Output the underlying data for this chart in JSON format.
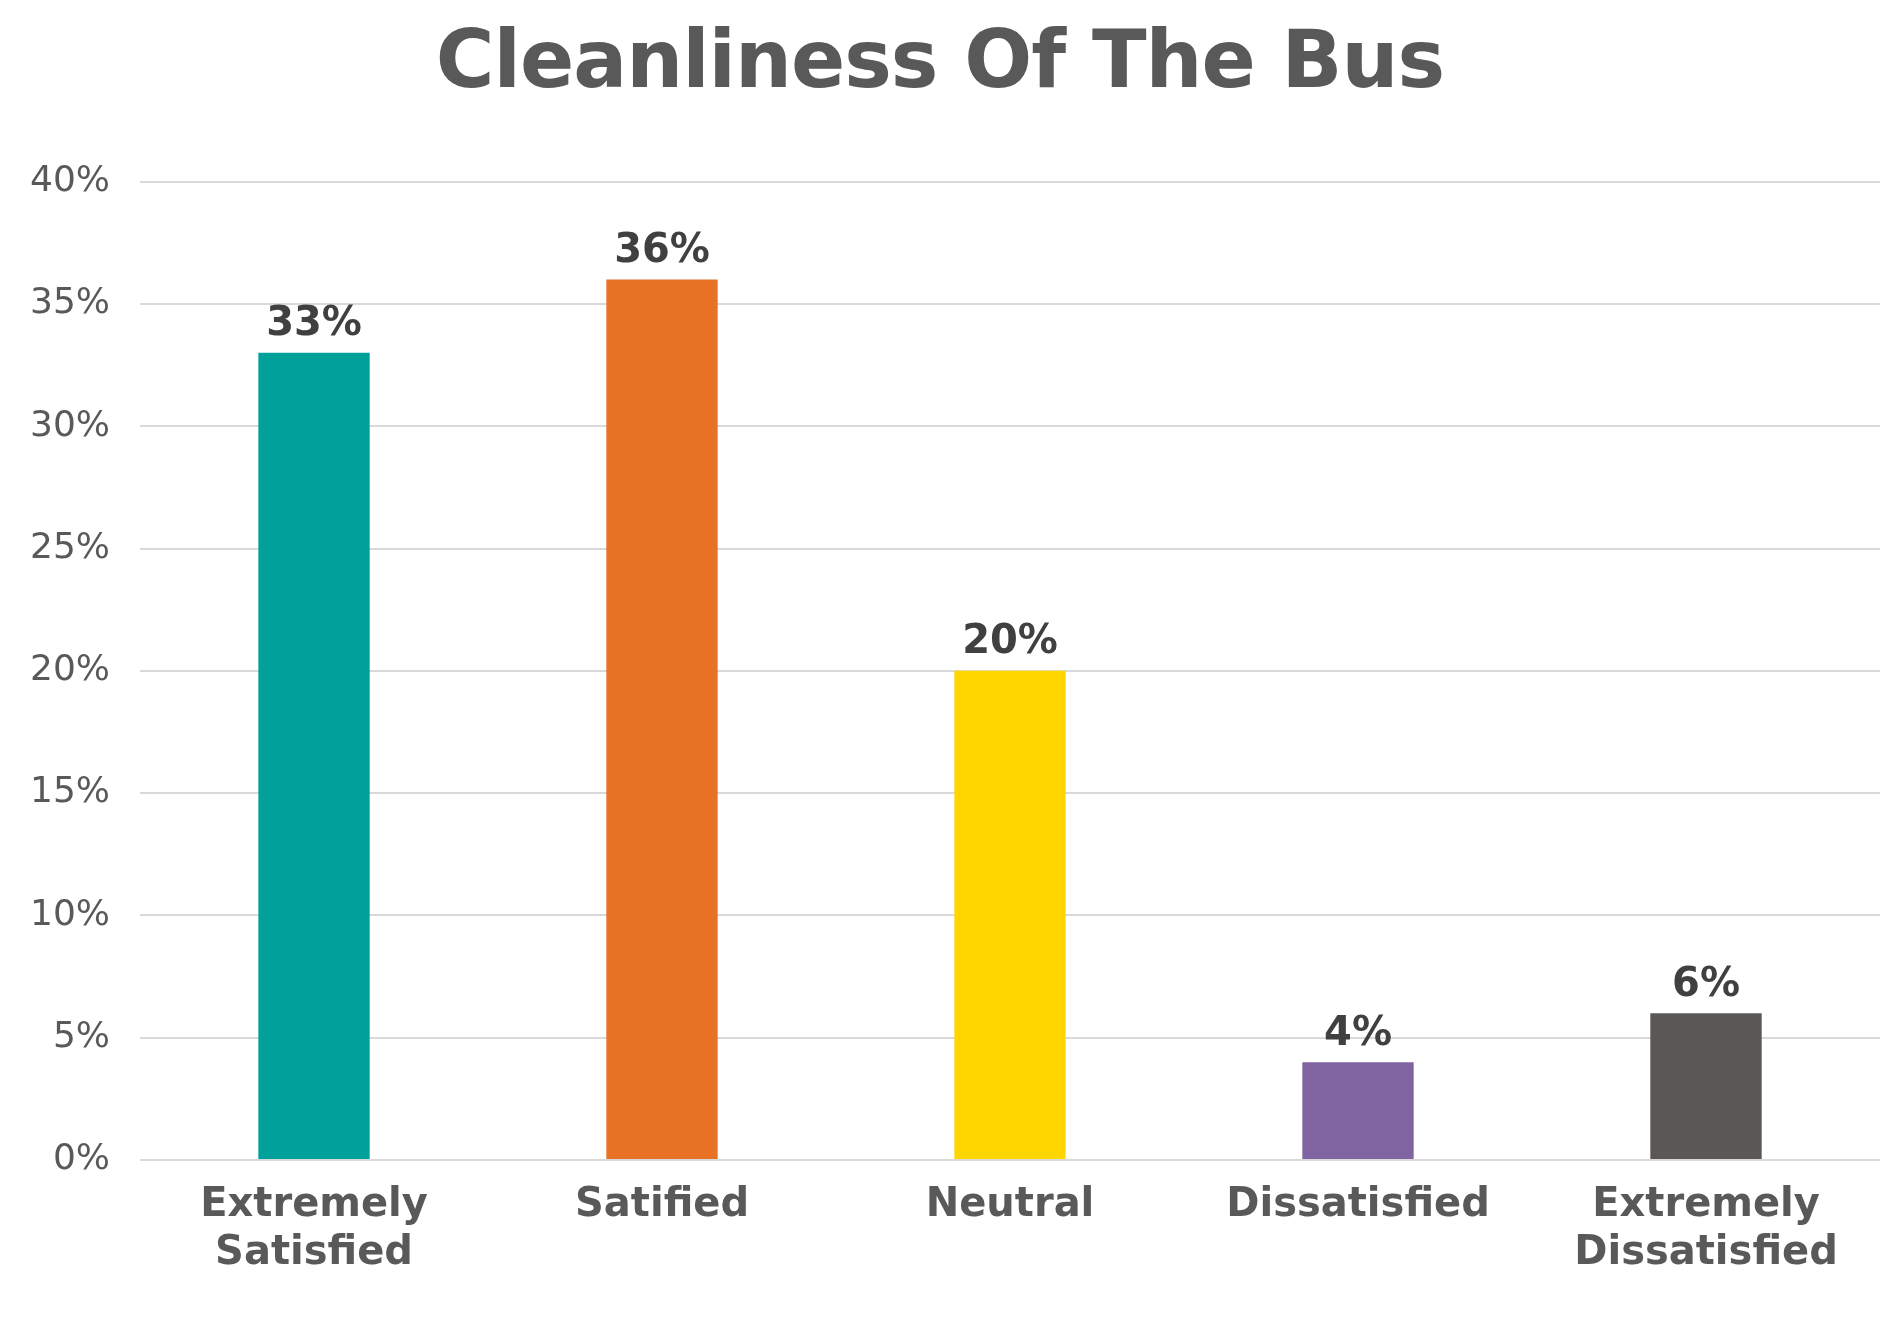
{
  "chart_data": {
    "type": "bar",
    "title": "Cleanliness Of The Bus",
    "categories": [
      "Extremely Satisfied",
      "Satified",
      "Neutral",
      "Dissatisfied",
      "Extremely Dissatisfied"
    ],
    "values": [
      33,
      36,
      20,
      4,
      6
    ],
    "colors": [
      "#00a19a",
      "#e87325",
      "#ffd600",
      "#8064a2",
      "#595856"
    ],
    "value_labels": [
      "33%",
      "36%",
      "20%",
      "4%",
      "6%"
    ],
    "ylim": [
      0,
      40
    ],
    "yticks": [
      {
        "value": 0,
        "label": "0%"
      },
      {
        "value": 5,
        "label": "5%"
      },
      {
        "value": 10,
        "label": "10%"
      },
      {
        "value": 15,
        "label": "15%"
      },
      {
        "value": 20,
        "label": "20%"
      },
      {
        "value": 25,
        "label": "25%"
      },
      {
        "value": 30,
        "label": "30%"
      },
      {
        "value": 35,
        "label": "35%"
      },
      {
        "value": 40,
        "label": "40%"
      }
    ],
    "grid": "y",
    "legend": false
  }
}
